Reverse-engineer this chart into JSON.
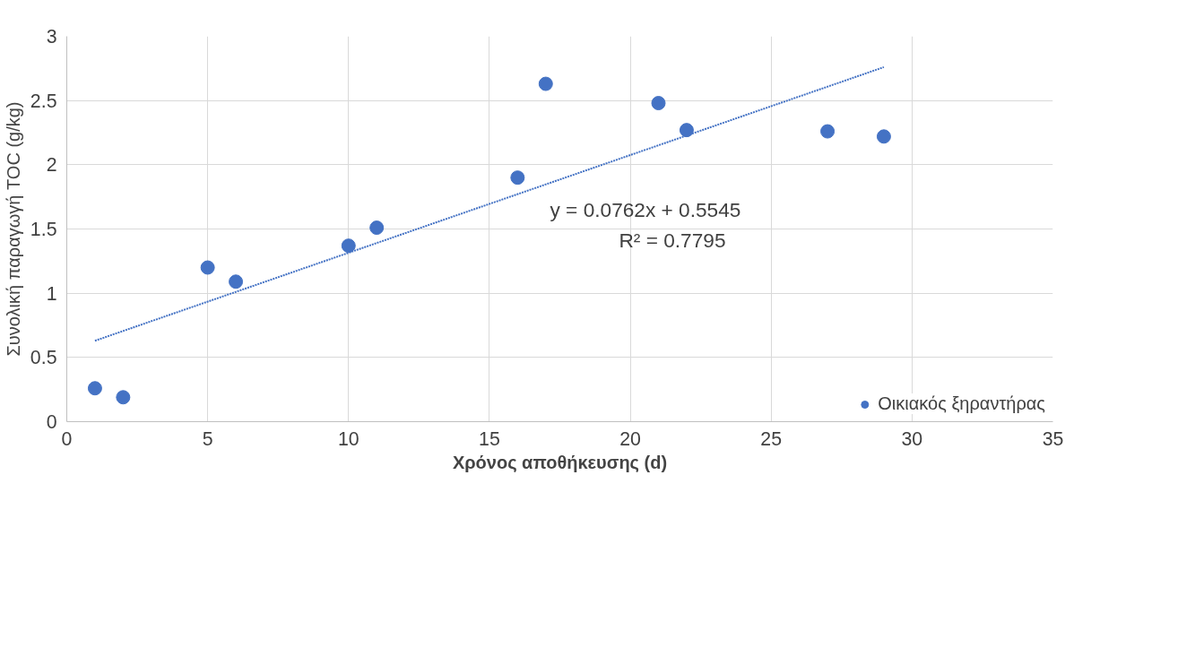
{
  "chart_data": {
    "type": "scatter",
    "xlabel": "Χρόνος αποθήκευσης (d)",
    "ylabel": "Συνολική παραγωγή TOC (g/kg)",
    "x": [
      1,
      2,
      5,
      6,
      10,
      11,
      16,
      17,
      21,
      22,
      27,
      29
    ],
    "series": [
      {
        "name": "Οικιακός ξηραντήρας",
        "color": "#4472c4",
        "marker": "circle",
        "values": [
          0.26,
          0.19,
          1.2,
          1.09,
          1.37,
          1.51,
          1.9,
          2.63,
          2.48,
          2.27,
          2.26,
          2.22
        ]
      },
      {
        "type": "line",
        "color": "#4472c4",
        "line_style": "dotted",
        "x": [
          1,
          29
        ],
        "values": [
          0.63,
          2.76
        ]
      }
    ],
    "annotations": [
      "y = 0.0762x + 0.5545",
      "R² = 0.7795"
    ],
    "xlim": [
      0,
      35
    ],
    "ylim": [
      0,
      3
    ],
    "xticks": [
      0,
      5,
      10,
      15,
      20,
      25,
      30,
      35
    ],
    "yticks": [
      0,
      0.5,
      1,
      1.5,
      2,
      2.5,
      3
    ],
    "grid": true,
    "legend": "bottom right"
  }
}
